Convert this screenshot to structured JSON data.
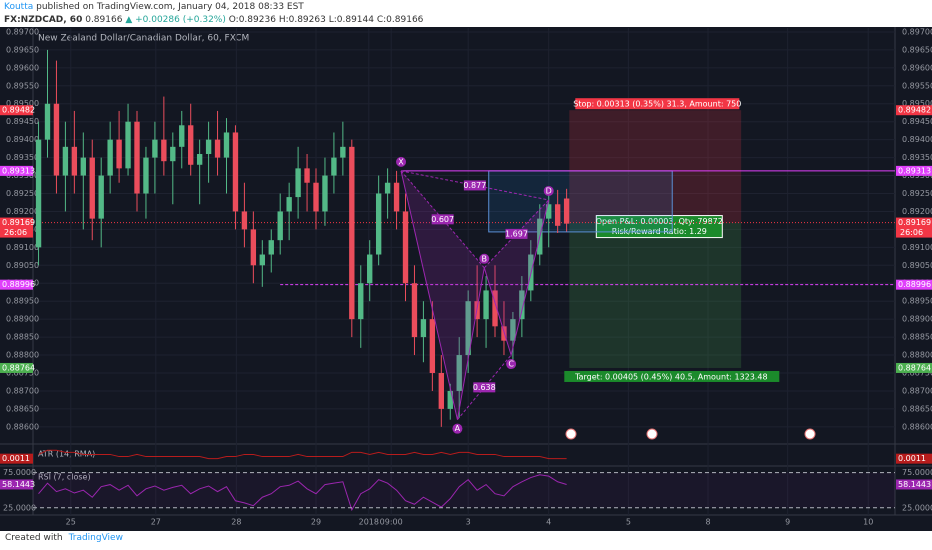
{
  "header": {
    "author": "Koutta",
    "published": "published on TradingView.com, January 04, 2018 08:33 EST",
    "symbol": "FX:NZDCAD, 60",
    "last": "0.89166",
    "change": "▲ +0.00286 (+0.32%)",
    "open": "O:0.89236",
    "high": "H:0.89263",
    "low": "L:0.89144",
    "close": "C:0.89166"
  },
  "chart_data": {
    "type": "candlestick",
    "title": "New Zealand Dollar/Canadian Dollar, 60, FXCM",
    "up_color": "#53b987",
    "down_color": "#eb4d5c",
    "candles": [
      [
        0.891,
        0.8945,
        0.8905,
        0.894
      ],
      [
        0.894,
        0.8965,
        0.8935,
        0.895
      ],
      [
        0.895,
        0.8962,
        0.8925,
        0.893
      ],
      [
        0.893,
        0.8945,
        0.892,
        0.8938
      ],
      [
        0.8938,
        0.8948,
        0.8925,
        0.893
      ],
      [
        0.893,
        0.8942,
        0.8915,
        0.8935
      ],
      [
        0.8935,
        0.894,
        0.8912,
        0.8918
      ],
      [
        0.8918,
        0.8935,
        0.891,
        0.893
      ],
      [
        0.893,
        0.8945,
        0.8925,
        0.894
      ],
      [
        0.894,
        0.8948,
        0.8928,
        0.8932
      ],
      [
        0.8932,
        0.895,
        0.893,
        0.8945
      ],
      [
        0.8945,
        0.8948,
        0.892,
        0.8925
      ],
      [
        0.8925,
        0.8938,
        0.8918,
        0.8935
      ],
      [
        0.8935,
        0.8945,
        0.8925,
        0.894
      ],
      [
        0.894,
        0.8952,
        0.893,
        0.8934
      ],
      [
        0.8934,
        0.8942,
        0.8922,
        0.8938
      ],
      [
        0.8938,
        0.8948,
        0.8932,
        0.8944
      ],
      [
        0.8944,
        0.895,
        0.893,
        0.8933
      ],
      [
        0.8933,
        0.894,
        0.8922,
        0.8936
      ],
      [
        0.8936,
        0.8945,
        0.8928,
        0.894
      ],
      [
        0.894,
        0.8948,
        0.893,
        0.8935
      ],
      [
        0.8935,
        0.8946,
        0.8925,
        0.8942
      ],
      [
        0.8942,
        0.8944,
        0.8915,
        0.892
      ],
      [
        0.892,
        0.8928,
        0.891,
        0.8915
      ],
      [
        0.8915,
        0.892,
        0.89,
        0.8905
      ],
      [
        0.8905,
        0.8912,
        0.8899,
        0.8908
      ],
      [
        0.8908,
        0.8915,
        0.8903,
        0.8912
      ],
      [
        0.8912,
        0.8925,
        0.8908,
        0.892
      ],
      [
        0.892,
        0.8928,
        0.8912,
        0.8924
      ],
      [
        0.8924,
        0.8938,
        0.8918,
        0.8932
      ],
      [
        0.8932,
        0.8936,
        0.892,
        0.8928
      ],
      [
        0.8928,
        0.8932,
        0.8915,
        0.892
      ],
      [
        0.892,
        0.8935,
        0.8916,
        0.893
      ],
      [
        0.893,
        0.8942,
        0.8925,
        0.8935
      ],
      [
        0.8935,
        0.8945,
        0.893,
        0.8938
      ],
      [
        0.8938,
        0.894,
        0.8885,
        0.889
      ],
      [
        0.889,
        0.8905,
        0.8882,
        0.89
      ],
      [
        0.89,
        0.8912,
        0.8895,
        0.8908
      ],
      [
        0.8908,
        0.893,
        0.8905,
        0.8925
      ],
      [
        0.8925,
        0.8932,
        0.8918,
        0.8928
      ],
      [
        0.8928,
        0.89313,
        0.8915,
        0.892
      ],
      [
        0.892,
        0.8925,
        0.8895,
        0.89
      ],
      [
        0.89,
        0.8905,
        0.888,
        0.8885
      ],
      [
        0.8885,
        0.8895,
        0.8878,
        0.889
      ],
      [
        0.889,
        0.8895,
        0.887,
        0.8875
      ],
      [
        0.8875,
        0.888,
        0.886,
        0.8865
      ],
      [
        0.8865,
        0.8872,
        0.8862,
        0.887
      ],
      [
        0.887,
        0.8885,
        0.88625,
        0.888
      ],
      [
        0.888,
        0.8898,
        0.8875,
        0.8895
      ],
      [
        0.8895,
        0.8905,
        0.8885,
        0.889
      ],
      [
        0.889,
        0.8902,
        0.8882,
        0.8898
      ],
      [
        0.8898,
        0.8905,
        0.8885,
        0.8888
      ],
      [
        0.8888,
        0.8895,
        0.888,
        0.8884
      ],
      [
        0.8884,
        0.8892,
        0.8878,
        0.889
      ],
      [
        0.889,
        0.8902,
        0.8885,
        0.8898
      ],
      [
        0.8898,
        0.8912,
        0.8895,
        0.8908
      ],
      [
        0.8908,
        0.8922,
        0.8905,
        0.8918
      ],
      [
        0.8918,
        0.8925,
        0.891,
        0.8922
      ],
      [
        0.8922,
        0.8926,
        0.8914,
        0.8916
      ],
      [
        0.89236,
        0.89263,
        0.89144,
        0.89166
      ]
    ],
    "xlim": [
      -0.62,
      95.69
    ],
    "xticks": [
      {
        "value": 3.6,
        "label": "25"
      },
      {
        "value": 13.1,
        "label": "27"
      },
      {
        "value": 22.1,
        "label": "28"
      },
      {
        "value": 31,
        "label": "29"
      },
      {
        "value": 36.9,
        "label": "2018"
      },
      {
        "value": 39.4,
        "label": "09:00"
      },
      {
        "value": 48,
        "label": "3"
      },
      {
        "value": 57,
        "label": "4"
      },
      {
        "value": 65.9,
        "label": "5"
      },
      {
        "value": 74.8,
        "label": "8"
      },
      {
        "value": 83.7,
        "label": "9"
      },
      {
        "value": 92.7,
        "label": "10"
      }
    ],
    "ylim": [
      0.88555,
      0.89711
    ],
    "yticks": [
      {
        "value": 0.886,
        "label": "0.88600"
      },
      {
        "value": 0.8865,
        "label": "0.88650"
      },
      {
        "value": 0.887,
        "label": "0.88700"
      },
      {
        "value": 0.8875,
        "label": "0.88750"
      },
      {
        "value": 0.888,
        "label": "0.88800"
      },
      {
        "value": 0.8885,
        "label": "0.88850"
      },
      {
        "value": 0.889,
        "label": "0.88900"
      },
      {
        "value": 0.8895,
        "label": "0.88950"
      },
      {
        "value": 0.89,
        "label": "0.89000"
      },
      {
        "value": 0.8905,
        "label": "0.89050"
      },
      {
        "value": 0.891,
        "label": "0.89100"
      },
      {
        "value": 0.8915,
        "label": "0.89150"
      },
      {
        "value": 0.892,
        "label": "0.89200"
      },
      {
        "value": 0.8925,
        "label": "0.89250"
      },
      {
        "value": 0.893,
        "label": "0.89300"
      },
      {
        "value": 0.8935,
        "label": "0.89350"
      },
      {
        "value": 0.894,
        "label": "0.89400"
      },
      {
        "value": 0.8945,
        "label": "0.89450"
      },
      {
        "value": 0.895,
        "label": "0.89500"
      },
      {
        "value": 0.8955,
        "label": "0.89550"
      },
      {
        "value": 0.896,
        "label": "0.89600"
      },
      {
        "value": 0.8965,
        "label": "0.89650"
      },
      {
        "value": 0.897,
        "label": "0.89700"
      }
    ],
    "levels": [
      {
        "value": 0.89482,
        "color": "#f23645"
      },
      {
        "value": 0.89313,
        "color": "#e040fb",
        "line": "solid"
      },
      {
        "value": 0.89169,
        "color": "#f23645",
        "countdown": "26:06"
      },
      {
        "value": 0.88996,
        "color": "#e040fb",
        "line": "dashed"
      },
      {
        "value": 0.88764,
        "color": "#4caf50"
      }
    ],
    "pattern": {
      "color": "#9c27b0",
      "points": [
        {
          "label": "X",
          "x": 40.5,
          "y": 0.89313
        },
        {
          "label": "A",
          "x": 46.8,
          "y": 0.8862
        },
        {
          "label": "B",
          "x": 49.8,
          "y": 0.89043
        },
        {
          "label": "C",
          "x": 52.8,
          "y": 0.888
        },
        {
          "label": "D",
          "x": 57,
          "y": 0.89232
        }
      ],
      "ratios": [
        {
          "value": 0.877,
          "from": 0,
          "to": 4
        },
        {
          "value": 0.607,
          "from": 0,
          "to": 2
        },
        {
          "value": 1.697,
          "from": 2,
          "to": 4
        },
        {
          "value": 0.638,
          "from": 1,
          "to": 3
        }
      ]
    },
    "box": {
      "x": [
        50.3,
        70.8
      ],
      "y": [
        0.89313,
        0.89143
      ]
    },
    "position": {
      "x": [
        59.3,
        78.5
      ],
      "entry": 0.89169,
      "stop": 0.89482,
      "target": 0.88764,
      "stop_text": "Stop: 0.00313 (0.35%) 31.3, Amount: 750",
      "pnl_text": "Open P&L: 0.00003, Qty: 79872",
      "rr_text": "Risk/Reward Ratio: 1.29",
      "target_text": "Target: 0.00405 (0.45%) 40.5, Amount: 1323.48"
    },
    "atr": {
      "name": "ATR (14, RMA)",
      "color": "#b71c1c",
      "ylim": [
        0.0008,
        0.0017
      ],
      "values": [
        0.0013,
        0.0015,
        0.0015,
        0.0014,
        0.0014,
        0.0013,
        0.0013,
        0.0013,
        0.0013,
        0.0012,
        0.0012,
        0.0013,
        0.0012,
        0.0012,
        0.0012,
        0.0012,
        0.0012,
        0.0012,
        0.0012,
        0.0011,
        0.0011,
        0.0012,
        0.0012,
        0.0013,
        0.0013,
        0.0012,
        0.0012,
        0.0012,
        0.0012,
        0.0013,
        0.0012,
        0.0012,
        0.0012,
        0.0012,
        0.0012,
        0.0014,
        0.0014,
        0.0013,
        0.0014,
        0.0013,
        0.0013,
        0.0013,
        0.0014,
        0.0013,
        0.0013,
        0.0014,
        0.0013,
        0.0014,
        0.0014,
        0.0013,
        0.0013,
        0.0013,
        0.0012,
        0.0012,
        0.0012,
        0.0012,
        0.0012,
        0.0011,
        0.0011,
        0.0011
      ]
    },
    "rsi": {
      "name": "RSI (7, close)",
      "color": "#9c27b0",
      "ylim": [
        19,
        83
      ],
      "yticks": [
        {
          "value": 75,
          "label": "75.0000"
        },
        {
          "value": 25,
          "label": "25.0000"
        }
      ],
      "values": [
        45,
        60,
        48,
        52,
        46,
        50,
        40,
        55,
        58,
        50,
        57,
        42,
        52,
        56,
        50,
        54,
        57,
        45,
        52,
        56,
        48,
        55,
        35,
        32,
        28,
        40,
        45,
        55,
        57,
        63,
        52,
        45,
        58,
        60,
        62,
        22,
        45,
        52,
        65,
        60,
        50,
        35,
        30,
        40,
        33,
        26,
        38,
        55,
        65,
        50,
        58,
        45,
        42,
        55,
        62,
        68,
        72,
        70,
        62,
        58.1443
      ]
    }
  },
  "footer": {
    "created": "Created with",
    "brand": "TradingView"
  }
}
